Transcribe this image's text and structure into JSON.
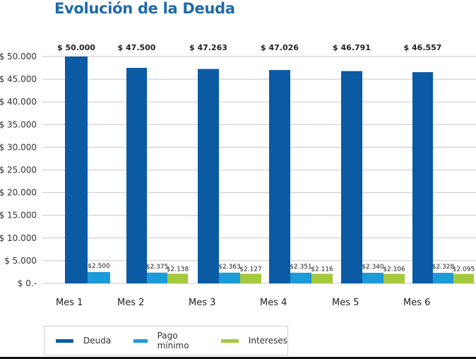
{
  "chart_data": {
    "type": "bar",
    "title": "Evolución de la Deuda",
    "categories": [
      "Mes 1",
      "Mes 2",
      "Mes 3",
      "Mes 4",
      "Mes 5",
      "Mes 6"
    ],
    "series": [
      {
        "name": "Deuda",
        "color": "#0b5aa4",
        "values": [
          50000,
          47500,
          47263,
          47026,
          46791,
          46557
        ],
        "labels": [
          "$ 50.000",
          "$ 47.500",
          "$ 47.263",
          "$ 47.026",
          "$ 46.791",
          "$ 46.557"
        ]
      },
      {
        "name": "Pago mínimo",
        "color": "#1b9bd7",
        "values": [
          2500,
          2375,
          2363,
          2351,
          2340,
          2328
        ],
        "labels": [
          "$2.500",
          "$2.375",
          "$2.363",
          "$2.351",
          "$2.340",
          "$2.328"
        ]
      },
      {
        "name": "Intereses",
        "color": "#a5c93c",
        "values": [
          null,
          2138,
          2127,
          2116,
          2106,
          2095
        ],
        "labels": [
          "",
          "$2.138",
          "$2.127",
          "$2.116",
          "$2.106",
          "$2.095"
        ]
      }
    ],
    "ylim": [
      0,
      50000
    ],
    "yticks": [
      0,
      5000,
      10000,
      15000,
      20000,
      25000,
      30000,
      35000,
      40000,
      45000,
      50000
    ],
    "ytick_labels": [
      "$ 0.-",
      "$ 5.000",
      "$ 10.000",
      "$ 15.000",
      "$ 20.000",
      "$ 25.000",
      "$ 30.000",
      "$ 35.000",
      "$ 40.000",
      "$ 45.000",
      "$ 50.000"
    ],
    "grid": true,
    "legend": "bottom-left"
  }
}
